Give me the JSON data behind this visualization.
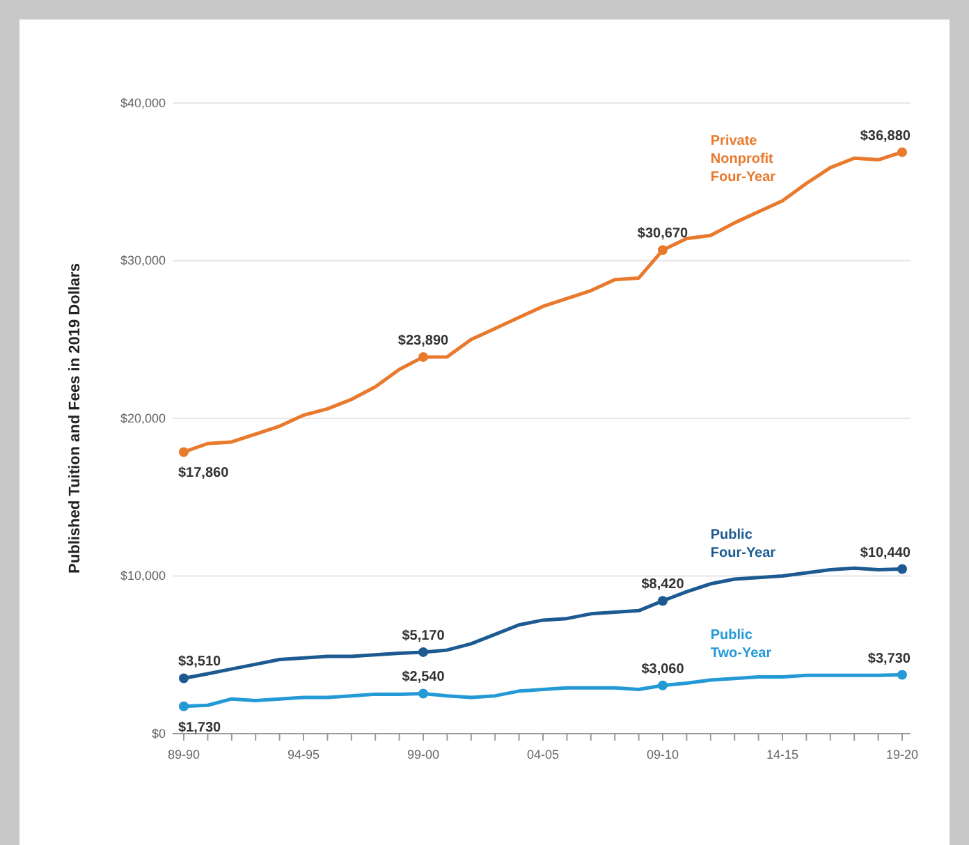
{
  "chart_data": {
    "type": "line",
    "ylabel": "Published Tuition and Fees in 2019 Dollars",
    "categories": [
      "89-90",
      null,
      null,
      null,
      null,
      "94-95",
      null,
      null,
      null,
      null,
      "99-00",
      null,
      null,
      null,
      null,
      "04-05",
      null,
      null,
      null,
      null,
      "09-10",
      null,
      null,
      null,
      null,
      "14-15",
      null,
      null,
      null,
      null,
      "19-20"
    ],
    "ylim": [
      0,
      40000
    ],
    "yticks": [
      {
        "value": 0,
        "label": "$0"
      },
      {
        "value": 10000,
        "label": "$10,000"
      },
      {
        "value": 20000,
        "label": "$20,000"
      },
      {
        "value": 30000,
        "label": "$30,000"
      },
      {
        "value": 40000,
        "label": "$40,000"
      }
    ],
    "grid": "y",
    "line_style": "solid",
    "legend": false,
    "series": [
      {
        "name": "Private Nonprofit Four-Year",
        "color": "#e8792d",
        "values": [
          17860,
          18400,
          18500,
          19000,
          19500,
          20200,
          20600,
          21200,
          22000,
          23100,
          23890,
          23900,
          25000,
          25700,
          26400,
          27100,
          27600,
          28100,
          28800,
          28900,
          30670,
          31400,
          31600,
          32400,
          33100,
          33800,
          34900,
          35900,
          36500,
          36400,
          36880
        ],
        "value_labels": [
          "$17,860",
          null,
          null,
          null,
          null,
          null,
          null,
          null,
          null,
          null,
          "$23,890",
          null,
          null,
          null,
          null,
          null,
          null,
          null,
          null,
          null,
          "$30,670",
          null,
          null,
          null,
          null,
          null,
          null,
          null,
          null,
          null,
          "$36,880"
        ]
      },
      {
        "name": "Public Four-Year",
        "color": "#1d5a91",
        "values": [
          3510,
          3800,
          4100,
          4400,
          4700,
          4800,
          4900,
          4900,
          5000,
          5100,
          5170,
          5300,
          5700,
          6300,
          6900,
          7200,
          7300,
          7600,
          7700,
          7800,
          8420,
          9000,
          9500,
          9800,
          9900,
          10000,
          10200,
          10400,
          10500,
          10400,
          10440
        ],
        "value_labels": [
          "$3,510",
          null,
          null,
          null,
          null,
          null,
          null,
          null,
          null,
          null,
          "$5,170",
          null,
          null,
          null,
          null,
          null,
          null,
          null,
          null,
          null,
          "$8,420",
          null,
          null,
          null,
          null,
          null,
          null,
          null,
          null,
          null,
          "$10,440"
        ]
      },
      {
        "name": "Public Two-Year",
        "color": "#2399d6",
        "values": [
          1730,
          1800,
          2200,
          2100,
          2200,
          2300,
          2300,
          2400,
          2500,
          2500,
          2540,
          2400,
          2300,
          2400,
          2700,
          2800,
          2900,
          2900,
          2900,
          2800,
          3060,
          3200,
          3400,
          3500,
          3600,
          3600,
          3700,
          3700,
          3700,
          3700,
          3730
        ],
        "value_labels": [
          "$1,730",
          null,
          null,
          null,
          null,
          null,
          null,
          null,
          null,
          null,
          "$2,540",
          null,
          null,
          null,
          null,
          null,
          null,
          null,
          null,
          null,
          "$3,060",
          null,
          null,
          null,
          null,
          null,
          null,
          null,
          null,
          null,
          "$3,730"
        ]
      }
    ]
  }
}
